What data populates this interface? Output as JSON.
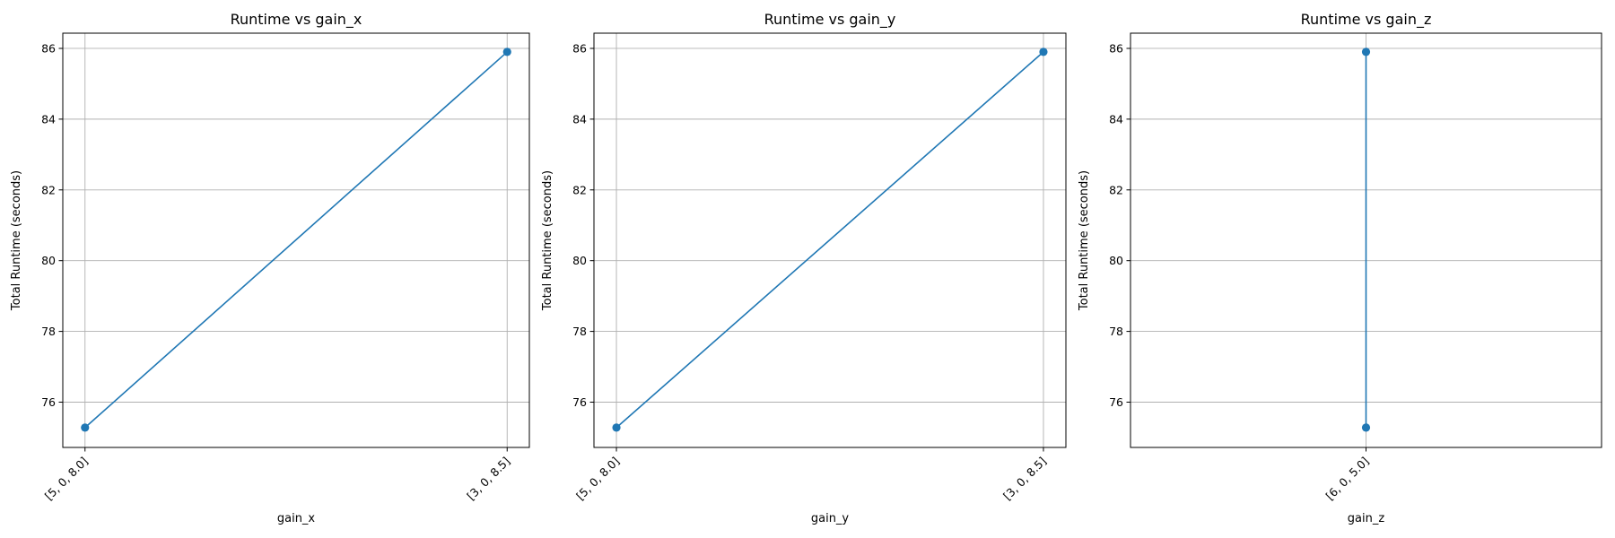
{
  "colors": {
    "series": "#1f77b4",
    "grid": "#b0b0b0"
  },
  "chart_data": [
    {
      "type": "line",
      "title": "Runtime vs gain_x",
      "xlabel": "gain_x",
      "ylabel": "Total Runtime (seconds)",
      "categories": [
        "[5, 0, 8.0]",
        "[3, 0, 8.5]"
      ],
      "ylim": [
        74.72,
        86.43
      ],
      "yticks": [
        76,
        78,
        80,
        82,
        84,
        86
      ],
      "grid": true,
      "series": [
        {
          "values": [
            75.28,
            85.9
          ]
        }
      ]
    },
    {
      "type": "line",
      "title": "Runtime vs gain_y",
      "xlabel": "gain_y",
      "ylabel": "Total Runtime (seconds)",
      "categories": [
        "[5, 0, 8.0]",
        "[3, 0, 8.5]"
      ],
      "ylim": [
        74.72,
        86.43
      ],
      "yticks": [
        76,
        78,
        80,
        82,
        84,
        86
      ],
      "grid": true,
      "series": [
        {
          "values": [
            75.28,
            85.9
          ]
        }
      ]
    },
    {
      "type": "line",
      "title": "Runtime vs gain_z",
      "xlabel": "gain_z",
      "ylabel": "Total Runtime (seconds)",
      "categories": [
        "[6, 0, 5.0]"
      ],
      "ylim": [
        74.72,
        86.43
      ],
      "yticks": [
        76,
        78,
        80,
        82,
        84,
        86
      ],
      "grid": true,
      "series": [
        {
          "x": [
            "[6, 0, 5.0]",
            "[6, 0, 5.0]"
          ],
          "values": [
            75.28,
            85.9
          ]
        }
      ]
    }
  ]
}
